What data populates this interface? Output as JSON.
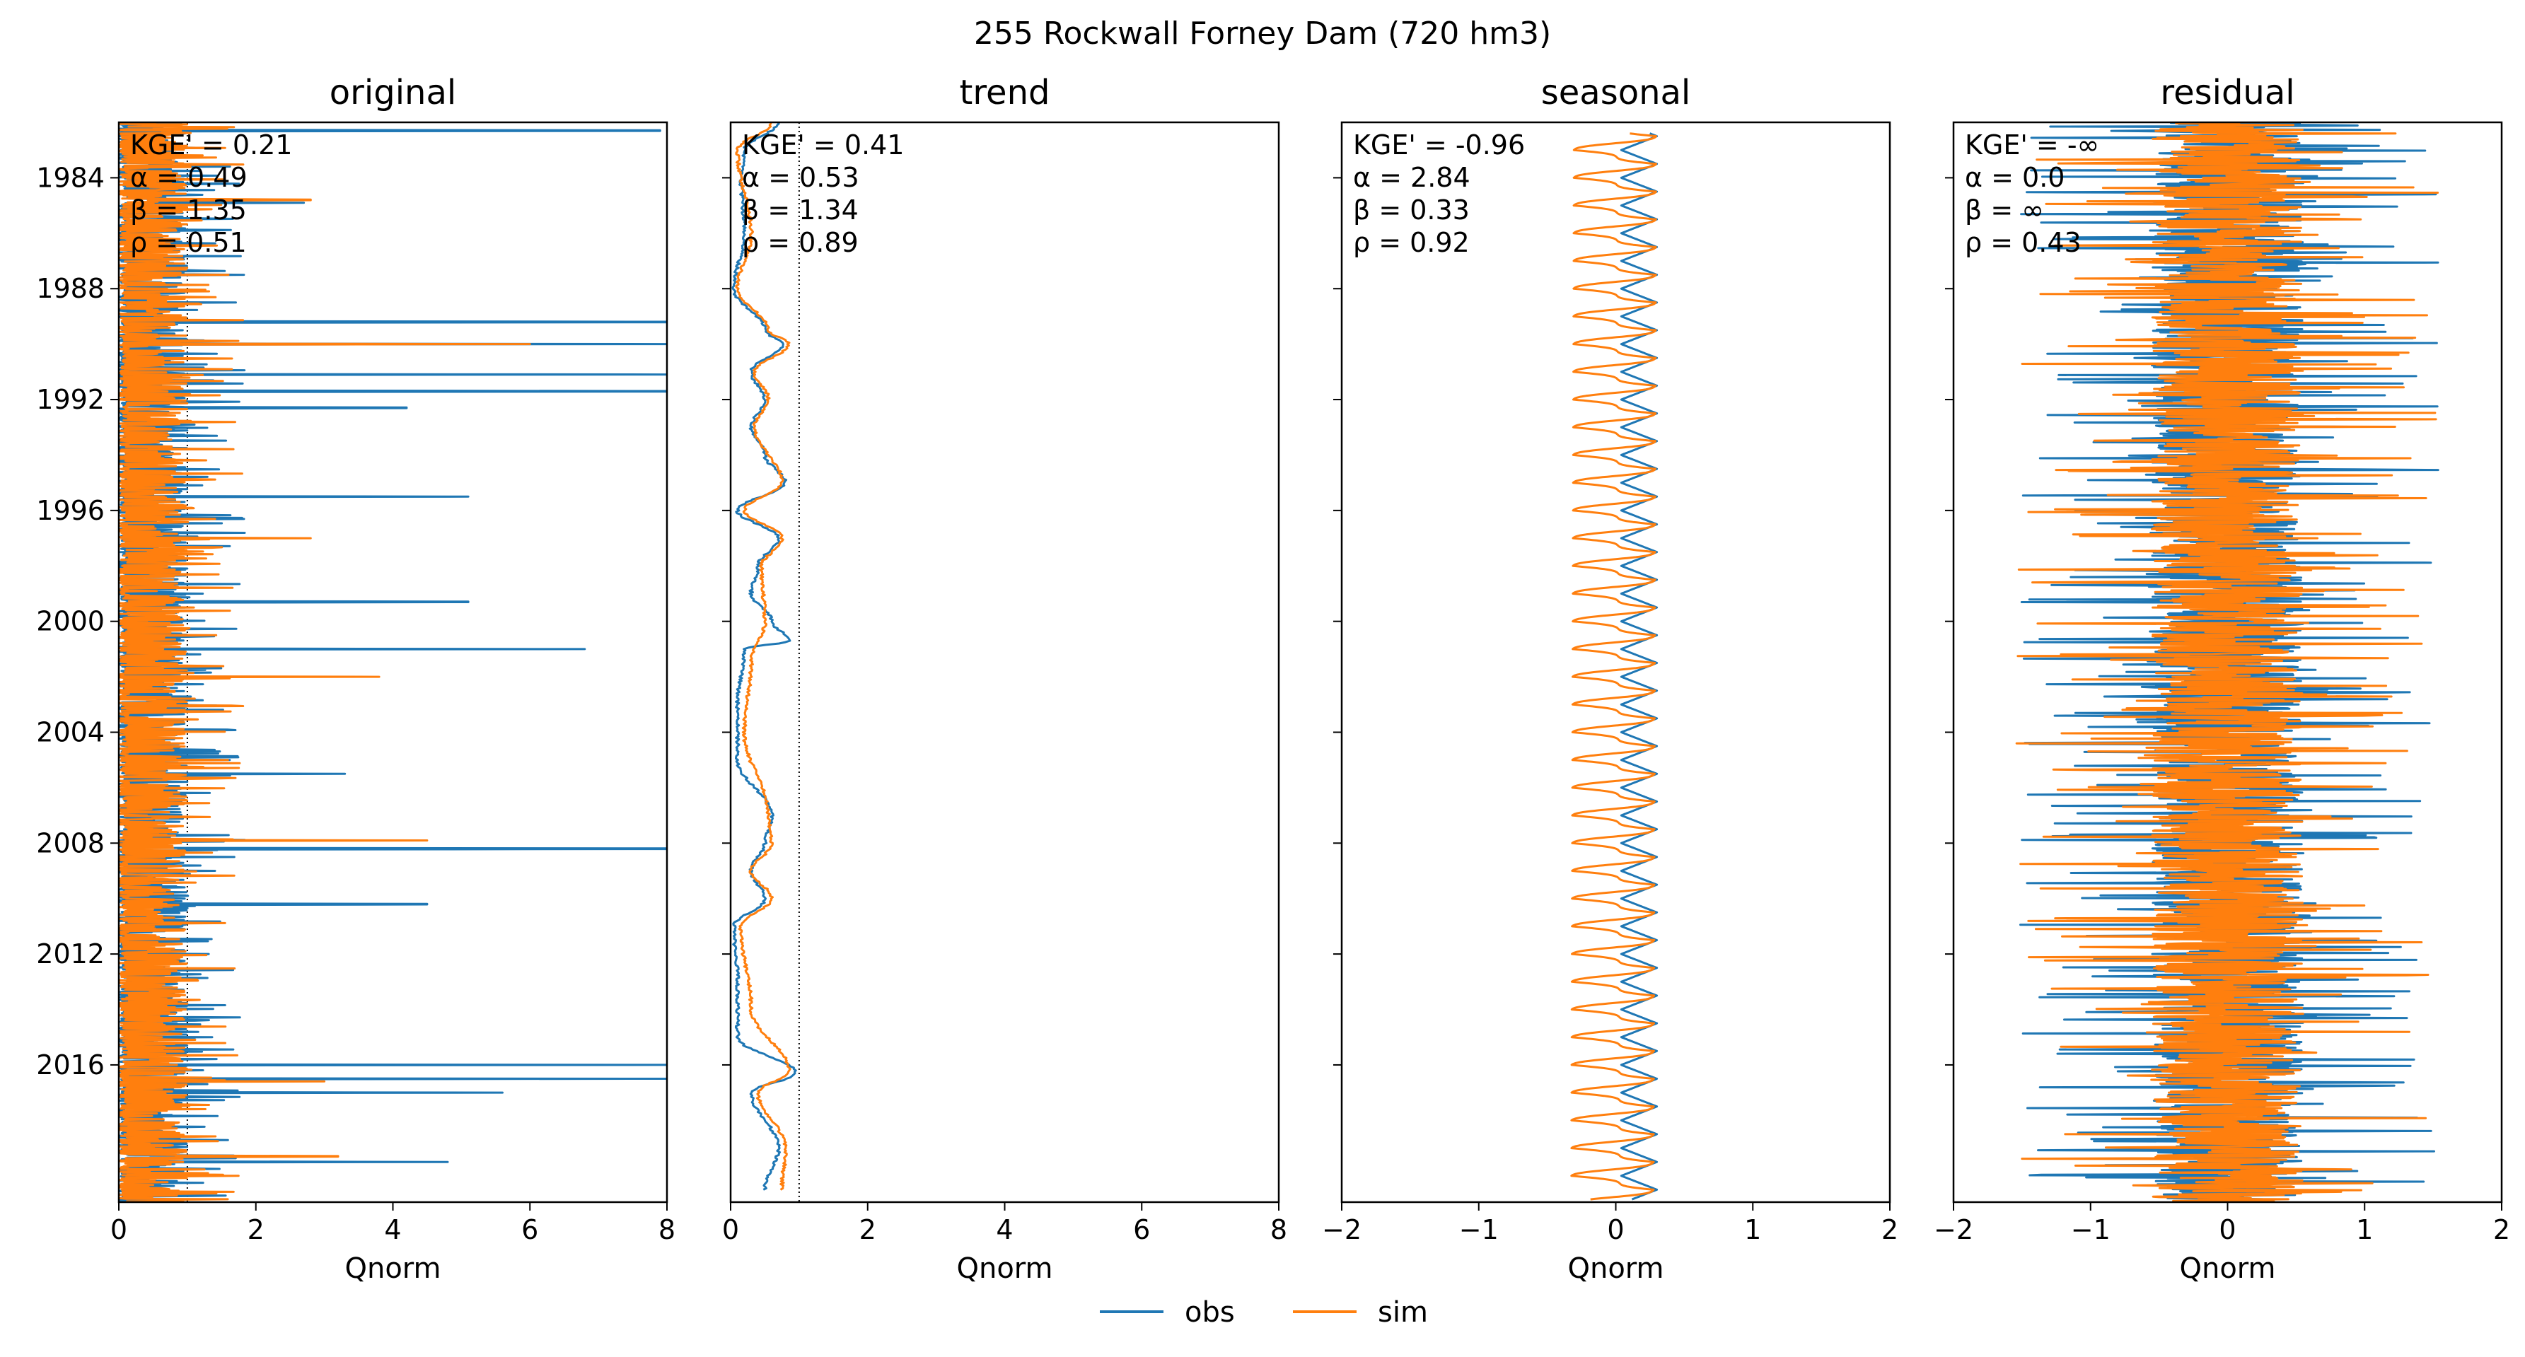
{
  "suptitle": "255  Rockwall Forney Dam (720 hm3)",
  "colors": {
    "obs": "#1f77b4",
    "sim": "#ff7f0e",
    "axes": "#000000",
    "ref_line": "#000000"
  },
  "legend": {
    "placement": "bottom-center",
    "entries": [
      "obs",
      "sim"
    ]
  },
  "y_axis": {
    "type": "time",
    "range": [
      "1982-01",
      "2020-12"
    ],
    "tick_labels": [
      "1984",
      "1988",
      "1992",
      "1996",
      "2000",
      "2004",
      "2008",
      "2012",
      "2016"
    ],
    "labels_on": "original"
  },
  "chart_data": [
    {
      "type": "line",
      "title": "original",
      "xlabel": "Qnorm",
      "xlim": [
        0,
        8
      ],
      "xtick_labels": [
        "0",
        "2",
        "4",
        "6",
        "8"
      ],
      "ref_lines_x": [
        1
      ],
      "stats": [
        "KGE' = 0.21",
        "α = 0.49",
        "β = 1.35",
        "ρ = 0.51"
      ],
      "series": [
        {
          "name": "obs",
          "base": 0.4,
          "noise": 0.6,
          "spikes": [
            [
              1982.3,
              7.9
            ],
            [
              1984.9,
              2.7
            ],
            [
              1989.2,
              8.0
            ],
            [
              1990.0,
              8.0
            ],
            [
              1991.1,
              8.0
            ],
            [
              1991.7,
              8.0
            ],
            [
              1992.3,
              4.2
            ],
            [
              1995.5,
              5.1
            ],
            [
              1999.3,
              5.1
            ],
            [
              2001.0,
              6.8
            ],
            [
              2005.5,
              3.3
            ],
            [
              2008.2,
              8.0
            ],
            [
              2010.2,
              4.5
            ],
            [
              2016.0,
              8.0
            ],
            [
              2016.5,
              8.0
            ],
            [
              2017.0,
              5.6
            ],
            [
              2019.5,
              4.8
            ]
          ]
        },
        {
          "name": "sim",
          "base": 0.4,
          "noise": 0.6,
          "spikes": [
            [
              1984.8,
              2.8
            ],
            [
              1990.0,
              6.0
            ],
            [
              1997.0,
              2.8
            ],
            [
              2002.0,
              3.8
            ],
            [
              2007.9,
              4.5
            ],
            [
              2016.6,
              3.0
            ],
            [
              2019.3,
              3.2
            ]
          ]
        }
      ]
    },
    {
      "type": "line",
      "title": "trend",
      "xlabel": "Qnorm",
      "xlim": [
        0,
        8
      ],
      "xtick_labels": [
        "0",
        "2",
        "4",
        "6",
        "8"
      ],
      "ref_lines_x": [
        0,
        1
      ],
      "stats": [
        "KGE' = 0.41",
        "α = 0.53",
        "β = 1.34",
        "ρ = 0.89"
      ],
      "series": [
        {
          "name": "obs",
          "points": [
            [
              1982.0,
              0.7
            ],
            [
              1983.0,
              0.2
            ],
            [
              1984.0,
              0.15
            ],
            [
              1986.0,
              0.2
            ],
            [
              1988.0,
              0.05
            ],
            [
              1989.5,
              0.5
            ],
            [
              1990.0,
              0.75
            ],
            [
              1991.0,
              0.3
            ],
            [
              1992.0,
              0.5
            ],
            [
              1993.0,
              0.3
            ],
            [
              1994.0,
              0.5
            ],
            [
              1995.0,
              0.8
            ],
            [
              1996.0,
              0.1
            ],
            [
              1997.0,
              0.7
            ],
            [
              1998.0,
              0.4
            ],
            [
              1999.0,
              0.3
            ],
            [
              2000.0,
              0.6
            ],
            [
              2000.7,
              0.85
            ],
            [
              2001.0,
              0.2
            ],
            [
              2003.0,
              0.1
            ],
            [
              2005.0,
              0.1
            ],
            [
              2007.0,
              0.6
            ],
            [
              2008.0,
              0.5
            ],
            [
              2009.0,
              0.3
            ],
            [
              2010.0,
              0.5
            ],
            [
              2011.0,
              0.05
            ],
            [
              2013.0,
              0.1
            ],
            [
              2015.0,
              0.1
            ],
            [
              2016.3,
              0.95
            ],
            [
              2017.0,
              0.3
            ],
            [
              2019.0,
              0.7
            ],
            [
              2020.5,
              0.5
            ]
          ]
        },
        {
          "name": "sim",
          "points": [
            [
              1982.0,
              0.6
            ],
            [
              1983.0,
              0.1
            ],
            [
              1986.0,
              0.3
            ],
            [
              1988.0,
              0.1
            ],
            [
              1989.5,
              0.55
            ],
            [
              1990.0,
              0.85
            ],
            [
              1991.0,
              0.35
            ],
            [
              1992.0,
              0.55
            ],
            [
              1993.0,
              0.35
            ],
            [
              1995.0,
              0.75
            ],
            [
              1996.0,
              0.2
            ],
            [
              1997.0,
              0.75
            ],
            [
              1998.0,
              0.45
            ],
            [
              2000.0,
              0.5
            ],
            [
              2001.5,
              0.3
            ],
            [
              2004.0,
              0.2
            ],
            [
              2007.0,
              0.55
            ],
            [
              2008.0,
              0.6
            ],
            [
              2009.0,
              0.3
            ],
            [
              2010.0,
              0.6
            ],
            [
              2011.0,
              0.15
            ],
            [
              2014.0,
              0.3
            ],
            [
              2016.2,
              0.85
            ],
            [
              2017.0,
              0.4
            ],
            [
              2019.0,
              0.8
            ],
            [
              2020.5,
              0.75
            ]
          ]
        }
      ]
    },
    {
      "type": "line",
      "title": "seasonal",
      "xlabel": "Qnorm",
      "xlim": [
        -2,
        2
      ],
      "xtick_labels": [
        "−2",
        "−1",
        "0",
        "1",
        "2"
      ],
      "ref_lines_x": [],
      "stats": [
        "KGE' = -0.96",
        "α = 2.84",
        "β = 0.33",
        "ρ = 0.92"
      ],
      "series": [
        {
          "name": "obs",
          "amplitude": 0.13,
          "offset": 0.17
        },
        {
          "name": "sim",
          "amplitude": 0.3,
          "offset": 0.0
        }
      ]
    },
    {
      "type": "line",
      "title": "residual",
      "xlabel": "Qnorm",
      "xlim": [
        -2,
        2
      ],
      "xtick_labels": [
        "−2",
        "−1",
        "0",
        "1",
        "2"
      ],
      "ref_lines_x": [],
      "stats": [
        "KGE' = -∞",
        "α = 0.0",
        "β = ∞",
        "ρ = 0.43"
      ],
      "series": [
        {
          "name": "obs",
          "base": 0.0,
          "noise": 1.1
        },
        {
          "name": "sim",
          "base": 0.0,
          "noise": 1.1
        }
      ]
    }
  ]
}
